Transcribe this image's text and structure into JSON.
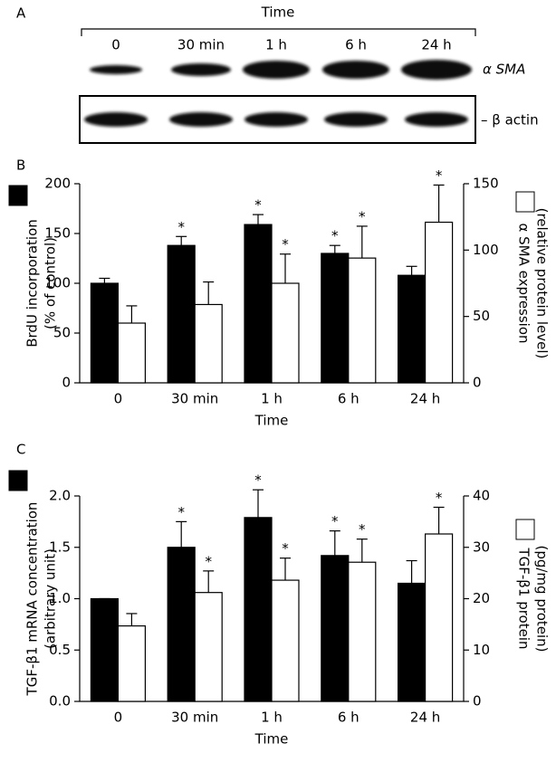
{
  "panel_a": {
    "panel_label": "A",
    "title": "Time",
    "lanes": [
      "0",
      "30 min",
      "1 h",
      "6 h",
      "24 h"
    ],
    "rows": [
      "α SMA",
      "– β actin"
    ]
  },
  "chart_data": [
    {
      "type": "bar",
      "panel_label": "B",
      "xlabel": "Time",
      "annotation": "*",
      "ylabel": [
        "BrdU incorporation",
        "(% of control)"
      ],
      "y2label": [
        "α SMA expression",
        "(relative protein level)"
      ],
      "categories": [
        "0",
        "30 min",
        "1 h",
        "6 h",
        "24 h"
      ],
      "ylim": [
        0,
        200
      ],
      "yticks": [
        0,
        50,
        100,
        150,
        200
      ],
      "y2lim": [
        0,
        150
      ],
      "y2ticks": [
        0,
        50,
        100,
        150
      ],
      "series": [
        {
          "color": "#000000",
          "values": [
            100,
            138,
            159,
            130,
            108
          ],
          "errors": [
            5,
            9,
            10,
            8,
            9
          ],
          "significant": [
            false,
            true,
            true,
            true,
            false
          ]
        },
        {
          "color": "#ffffff",
          "axis": "y2",
          "values": [
            45,
            59,
            75,
            94,
            121
          ],
          "errors": [
            13,
            17,
            22,
            24,
            28
          ],
          "significant": [
            false,
            false,
            true,
            true,
            true
          ]
        }
      ]
    },
    {
      "type": "bar",
      "panel_label": "C",
      "xlabel": "Time",
      "annotation": "*",
      "ylabel": [
        "TGF-β1 mRNA concentration",
        "(arbitrary unit)"
      ],
      "y2label": [
        "TGF-β1 protein",
        "(pg/mg protein)"
      ],
      "categories": [
        "0",
        "30 min",
        "1 h",
        "6 h",
        "24 h"
      ],
      "ylim": [
        0,
        2
      ],
      "yticks": [
        {
          "value": 0,
          "label": "0.0"
        },
        0.5,
        {
          "value": 1,
          "label": "1.0"
        },
        1.5,
        {
          "value": 2,
          "label": "2.0"
        }
      ],
      "y2lim": [
        0,
        40
      ],
      "y2ticks": [
        0,
        10,
        20,
        30,
        40
      ],
      "series": [
        {
          "color": "#000000",
          "values": [
            1.0,
            1.5,
            1.79,
            1.42,
            1.15
          ],
          "errors": [
            0,
            0.25,
            0.27,
            0.24,
            0.22
          ],
          "significant": [
            false,
            true,
            true,
            true,
            false
          ]
        },
        {
          "color": "#ffffff",
          "axis": "y2",
          "values": [
            14.7,
            21.2,
            23.6,
            27.1,
            32.6
          ],
          "errors": [
            2.4,
            4.2,
            4.3,
            4.5,
            5.2
          ],
          "significant": [
            false,
            true,
            true,
            true,
            true
          ]
        }
      ]
    }
  ]
}
